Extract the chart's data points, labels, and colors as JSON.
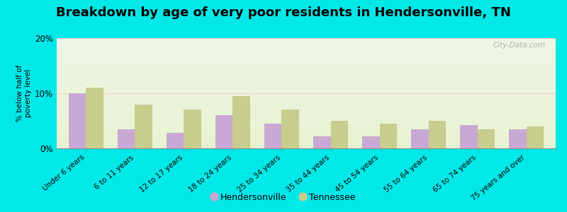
{
  "title": "Breakdown by age of very poor residents in Hendersonville, TN",
  "ylabel": "% below half of\npoverty level",
  "categories": [
    "Under 6 years",
    "6 to 11 years",
    "12 to 17 years",
    "18 to 24 years",
    "25 to 34 years",
    "35 to 44 years",
    "45 to 54 years",
    "55 to 64 years",
    "65 to 74 years",
    "75 years and over"
  ],
  "hendersonville": [
    10.0,
    3.5,
    2.8,
    6.0,
    4.5,
    2.2,
    2.2,
    3.5,
    4.2,
    3.5
  ],
  "tennessee": [
    11.0,
    8.0,
    7.0,
    9.5,
    7.0,
    5.0,
    4.5,
    5.0,
    3.5,
    4.0
  ],
  "hendersonville_color": "#c9a8d4",
  "tennessee_color": "#c8cc8c",
  "background_outer": "#00e8e8",
  "ylim": [
    0,
    20
  ],
  "yticks": [
    0,
    10,
    20
  ],
  "ytick_labels": [
    "0%",
    "10%",
    "20%"
  ],
  "bar_width": 0.35,
  "title_fontsize": 13,
  "legend_labels": [
    "Hendersonville",
    "Tennessee"
  ],
  "watermark": "City-Data.com"
}
